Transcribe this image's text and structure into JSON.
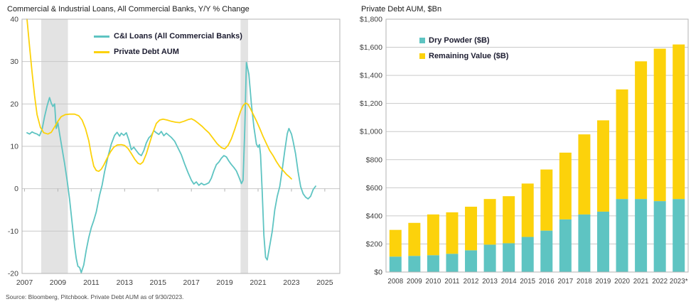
{
  "page": {
    "source_note": "Source: Bloomberg, Pitchbook. Private Debt AUM as of 9/30/2023."
  },
  "colors": {
    "teal": "#5EC4C2",
    "yellow": "#FCD20B",
    "grid": "#c9c9c9",
    "plot_border": "#b3b3b3",
    "recession_band": "#e3e3e3",
    "tick_text": "#404040",
    "legend_text": "#1c1c30"
  },
  "chart_data": [
    {
      "type": "line",
      "title": "Commercial & Industrial Loans, All Commercial Banks, Y/Y % Change",
      "xlabel": "",
      "ylabel": "",
      "xlim": [
        2006.85,
        2025.9
      ],
      "ylim": [
        -20,
        40
      ],
      "yticks": [
        40,
        30,
        20,
        10,
        0,
        -10,
        -20
      ],
      "xticks": [
        2007,
        2009,
        2011,
        2013,
        2015,
        2017,
        2019,
        2021,
        2023,
        2025
      ],
      "grid": true,
      "legend_position": "top-center-inside",
      "recession_bands": [
        [
          2008.0,
          2009.6
        ],
        [
          2019.95,
          2020.4
        ]
      ],
      "series": [
        {
          "name": "C&I Loans (All Commercial Banks)",
          "color": "#5EC4C2",
          "points": [
            [
              2007.15,
              13.2
            ],
            [
              2007.3,
              12.9
            ],
            [
              2007.45,
              13.4
            ],
            [
              2007.6,
              13.1
            ],
            [
              2007.75,
              12.9
            ],
            [
              2007.9,
              12.5
            ],
            [
              2008.05,
              14.0
            ],
            [
              2008.2,
              17.0
            ],
            [
              2008.35,
              19.5
            ],
            [
              2008.5,
              21.5
            ],
            [
              2008.6,
              20.2
            ],
            [
              2008.7,
              19.4
            ],
            [
              2008.8,
              20.0
            ],
            [
              2008.9,
              14.2
            ],
            [
              2009.0,
              15.6
            ],
            [
              2009.1,
              13.0
            ],
            [
              2009.25,
              9.5
            ],
            [
              2009.4,
              6.0
            ],
            [
              2009.55,
              2.0
            ],
            [
              2009.7,
              -2.5
            ],
            [
              2009.85,
              -8.0
            ],
            [
              2010.0,
              -13.5
            ],
            [
              2010.1,
              -16.5
            ],
            [
              2010.2,
              -18.3
            ],
            [
              2010.3,
              -18.6
            ],
            [
              2010.4,
              -19.8
            ],
            [
              2010.55,
              -18.0
            ],
            [
              2010.7,
              -14.5
            ],
            [
              2010.85,
              -11.5
            ],
            [
              2011.0,
              -9.2
            ],
            [
              2011.15,
              -7.5
            ],
            [
              2011.3,
              -5.5
            ],
            [
              2011.5,
              -1.5
            ],
            [
              2011.65,
              0.8
            ],
            [
              2011.8,
              4.0
            ],
            [
              2012.0,
              7.5
            ],
            [
              2012.2,
              10.5
            ],
            [
              2012.4,
              12.6
            ],
            [
              2012.55,
              13.3
            ],
            [
              2012.7,
              12.4
            ],
            [
              2012.8,
              13.1
            ],
            [
              2012.95,
              12.6
            ],
            [
              2013.1,
              13.2
            ],
            [
              2013.25,
              11.5
            ],
            [
              2013.4,
              9.2
            ],
            [
              2013.55,
              9.8
            ],
            [
              2013.7,
              9.0
            ],
            [
              2013.85,
              8.2
            ],
            [
              2014.0,
              7.8
            ],
            [
              2014.15,
              9.0
            ],
            [
              2014.3,
              10.8
            ],
            [
              2014.45,
              12.0
            ],
            [
              2014.6,
              12.6
            ],
            [
              2014.75,
              13.7
            ],
            [
              2014.9,
              13.2
            ],
            [
              2015.05,
              12.8
            ],
            [
              2015.2,
              13.5
            ],
            [
              2015.35,
              12.5
            ],
            [
              2015.5,
              13.1
            ],
            [
              2015.65,
              12.6
            ],
            [
              2015.8,
              12.1
            ],
            [
              2016.0,
              11.2
            ],
            [
              2016.2,
              9.6
            ],
            [
              2016.4,
              8.0
            ],
            [
              2016.6,
              5.8
            ],
            [
              2016.8,
              3.8
            ],
            [
              2017.0,
              2.0
            ],
            [
              2017.15,
              1.1
            ],
            [
              2017.3,
              1.6
            ],
            [
              2017.45,
              0.8
            ],
            [
              2017.6,
              1.3
            ],
            [
              2017.75,
              0.9
            ],
            [
              2017.9,
              1.1
            ],
            [
              2018.05,
              1.4
            ],
            [
              2018.2,
              2.5
            ],
            [
              2018.35,
              4.2
            ],
            [
              2018.5,
              5.7
            ],
            [
              2018.65,
              6.3
            ],
            [
              2018.8,
              7.2
            ],
            [
              2018.95,
              7.8
            ],
            [
              2019.1,
              7.5
            ],
            [
              2019.25,
              6.5
            ],
            [
              2019.4,
              5.7
            ],
            [
              2019.55,
              5.0
            ],
            [
              2019.7,
              4.2
            ],
            [
              2019.85,
              2.8
            ],
            [
              2020.0,
              1.2
            ],
            [
              2020.1,
              2.0
            ],
            [
              2020.2,
              14.0
            ],
            [
              2020.3,
              29.8
            ],
            [
              2020.45,
              27.0
            ],
            [
              2020.6,
              20.0
            ],
            [
              2020.75,
              14.5
            ],
            [
              2020.9,
              10.5
            ],
            [
              2021.0,
              9.8
            ],
            [
              2021.08,
              10.4
            ],
            [
              2021.15,
              8.0
            ],
            [
              2021.25,
              -1.0
            ],
            [
              2021.35,
              -11.0
            ],
            [
              2021.45,
              -16.2
            ],
            [
              2021.55,
              -16.8
            ],
            [
              2021.7,
              -13.5
            ],
            [
              2021.85,
              -10.0
            ],
            [
              2022.0,
              -5.0
            ],
            [
              2022.15,
              -1.8
            ],
            [
              2022.3,
              0.5
            ],
            [
              2022.45,
              4.5
            ],
            [
              2022.6,
              9.0
            ],
            [
              2022.75,
              13.0
            ],
            [
              2022.85,
              14.2
            ],
            [
              2023.0,
              12.9
            ],
            [
              2023.1,
              11.2
            ],
            [
              2023.25,
              8.2
            ],
            [
              2023.4,
              4.0
            ],
            [
              2023.55,
              0.5
            ],
            [
              2023.7,
              -1.2
            ],
            [
              2023.85,
              -2.0
            ],
            [
              2024.0,
              -2.4
            ],
            [
              2024.15,
              -1.8
            ],
            [
              2024.3,
              -0.2
            ],
            [
              2024.45,
              0.6
            ]
          ]
        },
        {
          "name": "Private Debt AUM",
          "color": "#FCD20B",
          "points": [
            [
              2007.15,
              40
            ],
            [
              2007.3,
              33.5
            ],
            [
              2007.45,
              27.5
            ],
            [
              2007.6,
              22.0
            ],
            [
              2007.75,
              17.5
            ],
            [
              2007.95,
              14.5
            ],
            [
              2008.15,
              13.2
            ],
            [
              2008.4,
              12.9
            ],
            [
              2008.6,
              13.3
            ],
            [
              2008.8,
              14.6
            ],
            [
              2009.0,
              15.9
            ],
            [
              2009.2,
              17.0
            ],
            [
              2009.45,
              17.5
            ],
            [
              2009.7,
              17.6
            ],
            [
              2010.0,
              17.6
            ],
            [
              2010.25,
              17.2
            ],
            [
              2010.45,
              16.2
            ],
            [
              2010.65,
              14.2
            ],
            [
              2010.85,
              11.3
            ],
            [
              2011.0,
              8.0
            ],
            [
              2011.15,
              5.3
            ],
            [
              2011.3,
              4.3
            ],
            [
              2011.45,
              4.1
            ],
            [
              2011.6,
              4.6
            ],
            [
              2011.75,
              5.6
            ],
            [
              2011.95,
              7.2
            ],
            [
              2012.15,
              8.7
            ],
            [
              2012.35,
              9.8
            ],
            [
              2012.55,
              10.3
            ],
            [
              2012.8,
              10.4
            ],
            [
              2013.0,
              10.2
            ],
            [
              2013.2,
              9.5
            ],
            [
              2013.4,
              8.3
            ],
            [
              2013.6,
              7.0
            ],
            [
              2013.8,
              6.0
            ],
            [
              2013.95,
              5.8
            ],
            [
              2014.1,
              6.3
            ],
            [
              2014.3,
              8.2
            ],
            [
              2014.5,
              10.8
            ],
            [
              2014.7,
              13.3
            ],
            [
              2014.9,
              15.4
            ],
            [
              2015.1,
              16.2
            ],
            [
              2015.3,
              16.4
            ],
            [
              2015.55,
              16.2
            ],
            [
              2015.8,
              15.9
            ],
            [
              2016.05,
              15.7
            ],
            [
              2016.3,
              15.6
            ],
            [
              2016.55,
              15.9
            ],
            [
              2016.8,
              16.3
            ],
            [
              2017.0,
              16.5
            ],
            [
              2017.2,
              16.1
            ],
            [
              2017.4,
              15.5
            ],
            [
              2017.65,
              14.7
            ],
            [
              2017.85,
              13.9
            ],
            [
              2018.05,
              13.2
            ],
            [
              2018.3,
              11.9
            ],
            [
              2018.55,
              10.6
            ],
            [
              2018.8,
              9.7
            ],
            [
              2019.0,
              9.4
            ],
            [
              2019.2,
              10.2
            ],
            [
              2019.4,
              11.8
            ],
            [
              2019.6,
              14.0
            ],
            [
              2019.8,
              16.5
            ],
            [
              2019.95,
              18.3
            ],
            [
              2020.1,
              19.6
            ],
            [
              2020.25,
              20.2
            ],
            [
              2020.4,
              19.9
            ],
            [
              2020.55,
              18.8
            ],
            [
              2020.7,
              17.6
            ],
            [
              2020.9,
              16.0
            ],
            [
              2021.1,
              14.2
            ],
            [
              2021.3,
              12.3
            ],
            [
              2021.5,
              10.6
            ],
            [
              2021.7,
              9.0
            ],
            [
              2021.9,
              7.8
            ],
            [
              2022.1,
              6.4
            ],
            [
              2022.3,
              5.2
            ],
            [
              2022.5,
              4.3
            ],
            [
              2022.7,
              3.4
            ],
            [
              2022.85,
              2.9
            ],
            [
              2023.0,
              2.3
            ]
          ]
        }
      ]
    },
    {
      "type": "bar",
      "stacked": true,
      "title": "Private Debt AUM, $Bn",
      "xlabel": "",
      "ylabel": "",
      "categories": [
        "2008",
        "2009",
        "2010",
        "2011",
        "2012",
        "2013",
        "2014",
        "2015",
        "2016",
        "2017",
        "2018",
        "2019",
        "2020",
        "2021",
        "2022",
        "2023*"
      ],
      "series": [
        {
          "name": "Dry Powder ($B)",
          "color": "#5EC4C2",
          "values": [
            110,
            115,
            120,
            130,
            155,
            195,
            205,
            250,
            295,
            375,
            410,
            430,
            520,
            520,
            505,
            520
          ]
        },
        {
          "name": "Remaining Value ($B)",
          "color": "#FCD20B",
          "values": [
            190,
            235,
            290,
            295,
            310,
            325,
            335,
            380,
            435,
            475,
            570,
            650,
            780,
            980,
            1085,
            1100
          ]
        }
      ],
      "ylim": [
        0,
        1800
      ],
      "ytick_step": 200,
      "ytick_prefix": "$",
      "grid": true,
      "legend_position": "top-left-inside"
    }
  ]
}
